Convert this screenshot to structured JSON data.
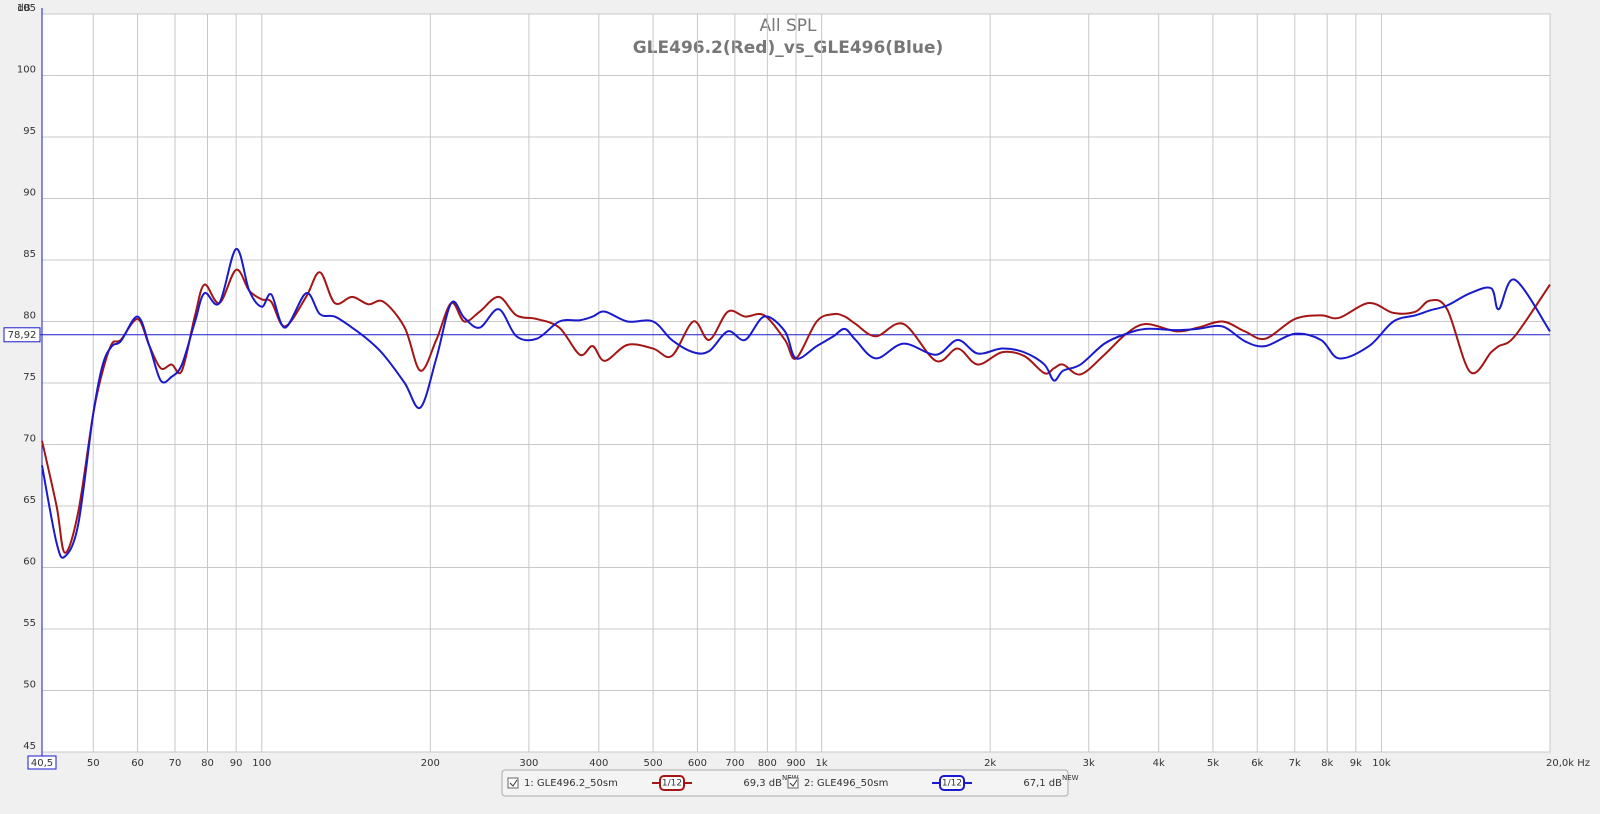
{
  "chart_data": {
    "type": "line",
    "title": "All SPL",
    "subtitle": "GLE496.2(Red)_vs_GLE496(Blue)",
    "y_label": "dB",
    "log_x": true,
    "grid": true,
    "xlim": [
      40.5,
      20000
    ],
    "ylim": [
      45,
      105
    ],
    "yticks": [
      45,
      50,
      55,
      60,
      65,
      70,
      75,
      80,
      85,
      90,
      95,
      100,
      105
    ],
    "xticks": [
      {
        "value": 40.5,
        "label": "40,5"
      },
      50,
      60,
      70,
      80,
      90,
      100,
      200,
      300,
      400,
      500,
      600,
      700,
      800,
      900,
      {
        "value": 1000,
        "label": "1k"
      },
      {
        "value": 2000,
        "label": "2k"
      },
      {
        "value": 3000,
        "label": "3k"
      },
      {
        "value": 4000,
        "label": "4k"
      },
      {
        "value": 5000,
        "label": "5k"
      },
      {
        "value": 6000,
        "label": "6k"
      },
      {
        "value": 7000,
        "label": "7k"
      },
      {
        "value": 8000,
        "label": "8k"
      },
      {
        "value": 9000,
        "label": "9k"
      },
      {
        "value": 10000,
        "label": "10k"
      },
      {
        "value": 20000,
        "label": "20,0k Hz"
      }
    ],
    "cursor": {
      "value": 78.92,
      "label": "78,92"
    },
    "x": [
      40.5,
      43,
      44.5,
      47,
      50,
      52,
      54,
      56,
      60,
      63,
      66,
      69,
      72,
      76,
      79,
      84,
      90,
      95,
      100,
      104,
      110,
      120,
      127,
      135,
      145,
      155,
      165,
      180,
      192,
      205,
      218,
      230,
      245,
      265,
      285,
      310,
      340,
      370,
      390,
      410,
      450,
      500,
      540,
      590,
      630,
      680,
      730,
      790,
      860,
      900,
      980,
      1050,
      1100,
      1150,
      1250,
      1400,
      1600,
      1750,
      1900,
      2100,
      2300,
      2500,
      2600,
      2700,
      2900,
      3200,
      3500,
      3800,
      4300,
      4700,
      5200,
      5700,
      6200,
      7000,
      7800,
      8400,
      9500,
      10500,
      11500,
      12200,
      13100,
      14400,
      15700,
      16200,
      17300,
      20000
    ],
    "series": [
      {
        "name": "1: GLE496.2_50sm",
        "color": "#a41515",
        "smoothing": "1/12",
        "level": "69,3 dB",
        "tag": "NEW",
        "values": [
          70.3,
          65,
          61.2,
          64.5,
          72.5,
          76,
          78.2,
          78.5,
          80.2,
          78,
          76.2,
          76.5,
          76,
          80.5,
          83,
          81.5,
          84.2,
          82.5,
          81.8,
          81.6,
          79.6,
          82,
          84,
          81.5,
          82,
          81.4,
          81.6,
          79.5,
          76,
          78.5,
          81.5,
          80,
          80.8,
          82,
          80.5,
          80.2,
          79.5,
          77.3,
          78,
          76.8,
          78.1,
          77.8,
          77.2,
          80,
          78.5,
          80.8,
          80.4,
          80.5,
          78.5,
          77,
          80,
          80.6,
          80.4,
          79.8,
          78.8,
          79.8,
          76.8,
          77.8,
          76.5,
          77.5,
          77.2,
          75.8,
          76.2,
          76.5,
          75.7,
          77.3,
          79,
          79.8,
          79.2,
          79.5,
          80,
          79.2,
          78.6,
          80.2,
          80.5,
          80.3,
          81.5,
          80.7,
          80.8,
          81.7,
          81,
          75.9,
          77.5,
          78,
          78.8,
          83
        ]
      },
      {
        "name": "2: GLE496_50sm",
        "color": "#1a1acc",
        "smoothing": "1/12",
        "level": "67,1 dB",
        "tag": "NEW",
        "values": [
          68.3,
          62,
          60.9,
          63.5,
          72.5,
          76.5,
          78,
          78.4,
          80.4,
          78,
          75.2,
          75.5,
          76.5,
          80,
          82.3,
          81.5,
          85.9,
          82.5,
          81.2,
          82.2,
          79.5,
          82.3,
          80.6,
          80.4,
          79.5,
          78.5,
          77.3,
          75,
          73,
          77,
          81.5,
          80.3,
          79.5,
          81,
          78.8,
          78.6,
          80,
          80.1,
          80.4,
          80.8,
          80,
          80,
          78.5,
          77.5,
          77.6,
          79.2,
          78.5,
          80.4,
          79.2,
          77,
          78,
          78.8,
          79.4,
          78.5,
          77,
          78.2,
          77.3,
          78.5,
          77.4,
          77.8,
          77.5,
          76.5,
          75.2,
          76,
          76.5,
          78.2,
          79,
          79.4,
          79.3,
          79.4,
          79.6,
          78.4,
          78,
          79,
          78.5,
          77,
          78,
          80,
          80.5,
          80.9,
          81.3,
          82.3,
          82.7,
          81,
          83.4,
          79.2
        ]
      }
    ]
  }
}
